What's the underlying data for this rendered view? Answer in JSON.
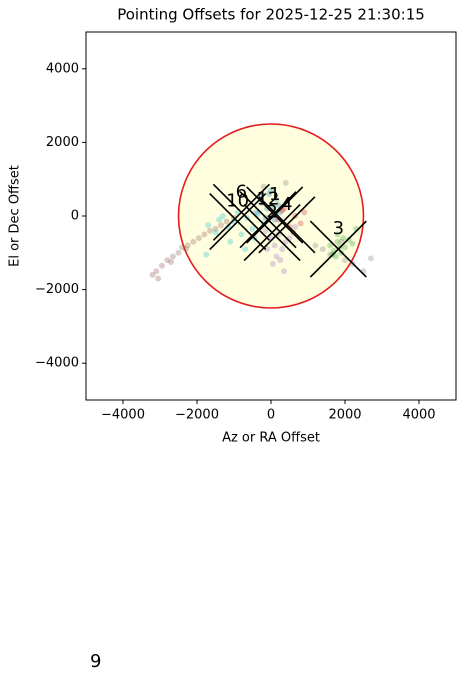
{
  "chart_data": {
    "type": "scatter",
    "title": "Pointing Offsets for 2025-12-25 21:30:15",
    "xlabel": "Az or RA Offset",
    "ylabel": "El or Dec Offset",
    "xlim": [
      -5000,
      5000
    ],
    "ylim": [
      -5000,
      5000
    ],
    "xticks": [
      {
        "value": -4000,
        "label": "−4000"
      },
      {
        "value": -2000,
        "label": "−2000"
      },
      0,
      2000,
      4000
    ],
    "yticks": [
      {
        "value": -4000,
        "label": "−4000"
      },
      {
        "value": -2000,
        "label": "−2000"
      },
      0,
      2000,
      4000
    ],
    "circle": {
      "x": 0,
      "y": 0,
      "r": 2500,
      "edgecolor": "#e41a1c",
      "facecolor": "#ffffe0"
    },
    "series": [
      {
        "name": "6",
        "color": "#8c564b",
        "marker": [
          -800,
          100
        ],
        "x": [
          -3200,
          -3100,
          -2950,
          -2800,
          -2650,
          -2500,
          -2400,
          -2250,
          -2100,
          -1950,
          -1800,
          -1650,
          -1500,
          -1350,
          -1200,
          -3050,
          -2700,
          -2300,
          -1000
        ],
        "y": [
          -1600,
          -1500,
          -1350,
          -1200,
          -1100,
          -1000,
          -850,
          -800,
          -700,
          -600,
          -500,
          -400,
          -350,
          -250,
          -150,
          -1700,
          -1250,
          -900,
          -50
        ]
      },
      {
        "name": "10",
        "color": "#17becf",
        "marker": [
          -900,
          -150
        ],
        "x": [
          -1700,
          -1500,
          -1300,
          -1150,
          -1000,
          -900,
          -800,
          -650,
          -500,
          -350,
          -200,
          -1400,
          -1100,
          -700,
          -450,
          -1750
        ],
        "y": [
          -250,
          -450,
          0,
          -300,
          -150,
          100,
          -500,
          -50,
          -350,
          50,
          -200,
          -100,
          -700,
          -900,
          -600,
          -1050
        ]
      },
      {
        "name": "12",
        "color": "#1f77b4",
        "marker": [
          -80,
          -100
        ],
        "x": [
          -400,
          -250,
          -150,
          -50,
          50,
          150,
          250,
          -300,
          -100,
          100,
          200,
          0
        ],
        "y": [
          100,
          350,
          -50,
          600,
          250,
          450,
          100,
          550,
          200,
          -100,
          300,
          700
        ]
      },
      {
        "name": "1",
        "color": "#7f7f7f",
        "marker": [
          100,
          30
        ],
        "x": [
          1400,
          1600,
          1900,
          2200,
          2500,
          2700,
          1200,
          2000,
          -200,
          400
        ],
        "y": [
          -900,
          -1050,
          -700,
          -1300,
          -1500,
          -1150,
          -800,
          -1200,
          800,
          900
        ]
      },
      {
        "name": "2",
        "color": "#9467bd",
        "marker": [
          30,
          -450
        ],
        "x": [
          -150,
          0,
          100,
          200,
          300,
          400,
          50,
          250,
          -100,
          150,
          350,
          500,
          650
        ],
        "y": [
          -400,
          -600,
          -800,
          -500,
          -900,
          -700,
          -1300,
          -1200,
          -900,
          -1100,
          -1500,
          -600,
          -300
        ]
      },
      {
        "name": "4",
        "color": "#d62728",
        "marker": [
          430,
          -240
        ],
        "x": [
          200,
          350,
          500,
          650,
          800,
          900,
          300,
          600
        ],
        "y": [
          -100,
          200,
          -300,
          0,
          -200,
          100,
          150,
          -450
        ]
      },
      {
        "name": "3",
        "color": "#2ca02c",
        "marker": [
          1820,
          -900
        ],
        "x": [
          1600,
          1700,
          1800,
          1900,
          2000,
          2100,
          1750,
          1850,
          1950,
          1650,
          2200,
          1800,
          2300
        ],
        "y": [
          -800,
          -950,
          -700,
          -1000,
          -850,
          -650,
          -1100,
          -850,
          -600,
          -1050,
          -750,
          -500,
          -350
        ]
      }
    ],
    "footer": "9"
  }
}
